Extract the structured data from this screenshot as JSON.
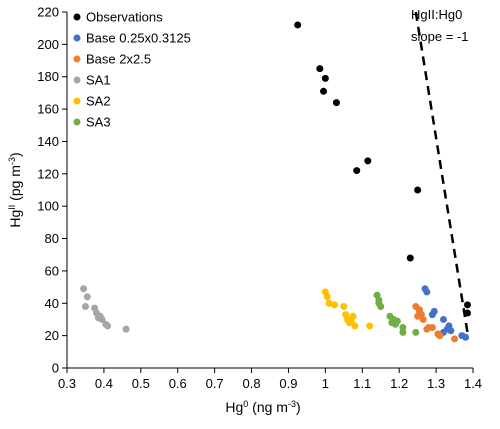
{
  "chart_data": {
    "type": "scatter",
    "xlabel": "Hg0 (ng m-3)",
    "ylabel": "HgII (pg m-3)",
    "xlim": [
      0.3,
      1.4
    ],
    "ylim": [
      0,
      220
    ],
    "xticks": [
      "0.3",
      "0.4",
      "0.5",
      "0.6",
      "0.7",
      "0.8",
      "0.9",
      "1",
      "1.1",
      "1.2",
      "1.3",
      "1.4"
    ],
    "yticks": [
      "0",
      "20",
      "40",
      "60",
      "80",
      "100",
      "120",
      "140",
      "160",
      "180",
      "200",
      "220"
    ],
    "grid": false,
    "legend_position": "top-left",
    "series": [
      {
        "name": "Observations",
        "color": "#000000",
        "points": [
          [
            0.925,
            212
          ],
          [
            0.985,
            185
          ],
          [
            1.0,
            179
          ],
          [
            0.995,
            171
          ],
          [
            1.03,
            164
          ],
          [
            1.115,
            128
          ],
          [
            1.085,
            122
          ],
          [
            1.25,
            110
          ],
          [
            1.23,
            68
          ],
          [
            1.385,
            39
          ],
          [
            1.385,
            34
          ]
        ]
      },
      {
        "name": "Base 0.25x0.3125",
        "color": "#4472C4",
        "points": [
          [
            1.27,
            49
          ],
          [
            1.275,
            47
          ],
          [
            1.295,
            35
          ],
          [
            1.29,
            33
          ],
          [
            1.32,
            30
          ],
          [
            1.335,
            26
          ],
          [
            1.34,
            23
          ],
          [
            1.32,
            22
          ],
          [
            1.37,
            20
          ],
          [
            1.38,
            19
          ],
          [
            1.33,
            24
          ]
        ]
      },
      {
        "name": "Base 2x2.5",
        "color": "#ED7D31",
        "points": [
          [
            1.245,
            38
          ],
          [
            1.255,
            36
          ],
          [
            1.26,
            33
          ],
          [
            1.25,
            32
          ],
          [
            1.265,
            30
          ],
          [
            1.28,
            25
          ],
          [
            1.275,
            24
          ],
          [
            1.29,
            25
          ],
          [
            1.31,
            20
          ],
          [
            1.35,
            18
          ],
          [
            1.305,
            21
          ],
          [
            1.255,
            35
          ]
        ]
      },
      {
        "name": "SA1",
        "color": "#A5A5A5",
        "points": [
          [
            0.345,
            49
          ],
          [
            0.355,
            44
          ],
          [
            0.35,
            38
          ],
          [
            0.375,
            37
          ],
          [
            0.38,
            34
          ],
          [
            0.385,
            31
          ],
          [
            0.39,
            32
          ],
          [
            0.395,
            30
          ],
          [
            0.405,
            27
          ],
          [
            0.41,
            26
          ],
          [
            0.46,
            24
          ]
        ]
      },
      {
        "name": "SA2",
        "color": "#FFC000",
        "points": [
          [
            1.0,
            47
          ],
          [
            1.005,
            44
          ],
          [
            1.01,
            40
          ],
          [
            1.025,
            39
          ],
          [
            1.05,
            38
          ],
          [
            1.055,
            33
          ],
          [
            1.06,
            30
          ],
          [
            1.075,
            32
          ],
          [
            1.07,
            29
          ],
          [
            1.08,
            26
          ],
          [
            1.12,
            26
          ],
          [
            1.065,
            28
          ]
        ]
      },
      {
        "name": "SA3",
        "color": "#70AD47",
        "points": [
          [
            1.14,
            45
          ],
          [
            1.145,
            42
          ],
          [
            1.15,
            38
          ],
          [
            1.175,
            32
          ],
          [
            1.185,
            30
          ],
          [
            1.18,
            28
          ],
          [
            1.19,
            27
          ],
          [
            1.21,
            25
          ],
          [
            1.21,
            22
          ],
          [
            1.245,
            22
          ],
          [
            1.195,
            29
          ],
          [
            1.145,
            40
          ]
        ]
      }
    ],
    "annotation": {
      "line1": "HgII:Hg0",
      "line2": "slope = -1",
      "line_points": [
        [
          1.245,
          220
        ],
        [
          1.385,
          22
        ]
      ]
    }
  }
}
